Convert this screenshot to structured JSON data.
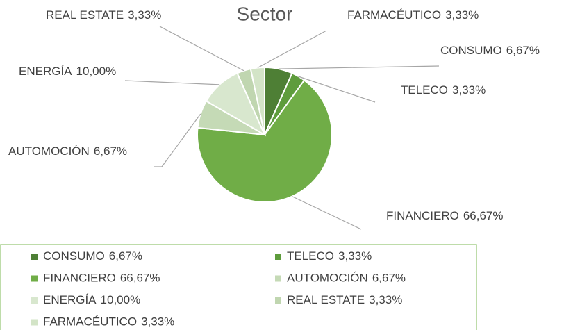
{
  "chart_data": {
    "type": "pie",
    "title": "Sector",
    "categories": [
      "CONSUMO",
      "TELECO",
      "FINANCIERO",
      "AUTOMOCIÓN",
      "ENERGÍA",
      "REAL ESTATE",
      "FARMACÉUTICO"
    ],
    "values": [
      6.67,
      3.33,
      66.67,
      6.67,
      10.0,
      3.33,
      3.33
    ],
    "value_labels": [
      "6,67%",
      "3,33%",
      "66,67%",
      "6,67%",
      "10,00%",
      "3,33%",
      "3,33%"
    ],
    "colors": [
      "#4e7f35",
      "#5e9c3c",
      "#70ad47",
      "#c5dab6",
      "#d8e7ce",
      "#c0d6b0",
      "#d3e4c7"
    ]
  }
}
